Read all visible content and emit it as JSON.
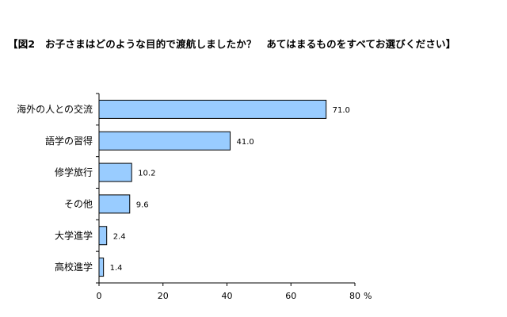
{
  "chart_data": {
    "type": "bar",
    "orientation": "horizontal",
    "title": "【図2　お子さまはどのような目的で渡航しましたか？　あてはまるものをすべてお選びください】",
    "categories": [
      "海外の人との交流",
      "語学の習得",
      "修学旅行",
      "その他",
      "大学進学",
      "高校進学"
    ],
    "series": [
      {
        "values": [
          71.0,
          41.0,
          10.2,
          9.6,
          2.4,
          1.4
        ],
        "value_labels": [
          "71.0",
          "41.0",
          "10.2",
          "9.6",
          "2.4",
          "1.4"
        ]
      }
    ],
    "xlim": [
      0,
      80
    ],
    "xticks": [
      0,
      20,
      40,
      60,
      80
    ],
    "xtick_labels": [
      "0",
      "20",
      "40",
      "60",
      "80"
    ],
    "x_unit": "%",
    "grid": false,
    "legend": "none",
    "colors": {
      "bar_fill": "#99CCFF",
      "bar_stroke": "#000000",
      "axis": "#000000",
      "background": "#FFFFFF"
    }
  }
}
